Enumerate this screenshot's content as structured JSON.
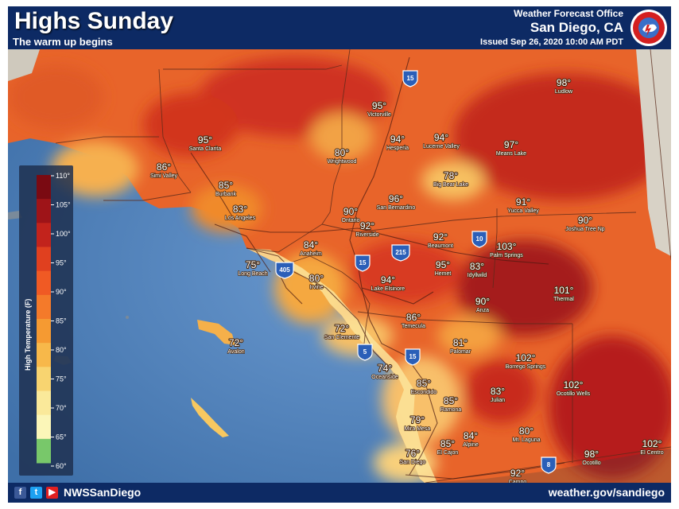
{
  "header": {
    "title": "Highs Sunday",
    "subtitle": "The warm up begins",
    "office_line": "Weather Forecast Office",
    "location": "San Diego, CA",
    "issued": "Issued Sep 26, 2020 10:00 AM PDT",
    "logo_text": "NATIONAL WEATHER SERVICE"
  },
  "legend": {
    "title": "High Temperature (F)",
    "ticks": [
      "110°",
      "105°",
      "100°",
      "95°",
      "90°",
      "85°",
      "80°",
      "75°",
      "70°",
      "65°",
      "60°"
    ]
  },
  "cities": [
    {
      "temp": "98°",
      "name": "Ludlow"
    },
    {
      "temp": "95°",
      "name": "Victorville"
    },
    {
      "temp": "94°",
      "name": "Hesperia"
    },
    {
      "temp": "94°",
      "name": "Lucerne Valley"
    },
    {
      "temp": "97°",
      "name": "Means Lake"
    },
    {
      "temp": "95°",
      "name": "Santa Clarita"
    },
    {
      "temp": "86°",
      "name": "Simi Valley"
    },
    {
      "temp": "85°",
      "name": "Burbank"
    },
    {
      "temp": "80°",
      "name": "Wrightwood"
    },
    {
      "temp": "78°",
      "name": "Big Bear Lake"
    },
    {
      "temp": "91°",
      "name": "Yucca Valley"
    },
    {
      "temp": "83°",
      "name": "Los Angeles"
    },
    {
      "temp": "90°",
      "name": "Ontario"
    },
    {
      "temp": "96°",
      "name": "San Bernardino"
    },
    {
      "temp": "92°",
      "name": "Riverside"
    },
    {
      "temp": "92°",
      "name": "Beaumont"
    },
    {
      "temp": "90°",
      "name": "Joshua Tree Np"
    },
    {
      "temp": "84°",
      "name": "Anaheim"
    },
    {
      "temp": "103°",
      "name": "Palm Springs"
    },
    {
      "temp": "75°",
      "name": "Long Beach"
    },
    {
      "temp": "80°",
      "name": "Irvine"
    },
    {
      "temp": "95°",
      "name": "Hemet"
    },
    {
      "temp": "83°",
      "name": "Idyllwild"
    },
    {
      "temp": "94°",
      "name": "Lake Elsinore"
    },
    {
      "temp": "101°",
      "name": "Thermal"
    },
    {
      "temp": "90°",
      "name": "Anza"
    },
    {
      "temp": "86°",
      "name": "Temecula"
    },
    {
      "temp": "72°",
      "name": "San Clemente"
    },
    {
      "temp": "72°",
      "name": "Avalon"
    },
    {
      "temp": "81°",
      "name": "Palomar"
    },
    {
      "temp": "102°",
      "name": "Borrego Springs"
    },
    {
      "temp": "74°",
      "name": "Oceanside"
    },
    {
      "temp": "85°",
      "name": "Escondido"
    },
    {
      "temp": "102°",
      "name": "Ocotillo Wells"
    },
    {
      "temp": "85°",
      "name": "Ramona"
    },
    {
      "temp": "83°",
      "name": "Julian"
    },
    {
      "temp": "79°",
      "name": "Mira Mesa"
    },
    {
      "temp": "80°",
      "name": "Mt. Laguna"
    },
    {
      "temp": "84°",
      "name": "Alpine"
    },
    {
      "temp": "85°",
      "name": "El Cajon"
    },
    {
      "temp": "102°",
      "name": "El Centro"
    },
    {
      "temp": "76°",
      "name": "San Diego"
    },
    {
      "temp": "98°",
      "name": "Ocotillo"
    },
    {
      "temp": "92°",
      "name": "Campo"
    }
  ],
  "highways": [
    "15",
    "215",
    "10",
    "405",
    "5",
    "15",
    "8",
    "15"
  ],
  "footer": {
    "handle": "NWSSanDiego",
    "website": "weather.gov/sandiego"
  },
  "colors": {
    "background": "#0d2a64",
    "ocean": "#5a8bc4",
    "hot": "#c0281e",
    "warm": "#f08c28",
    "mild": "#f8c870"
  }
}
